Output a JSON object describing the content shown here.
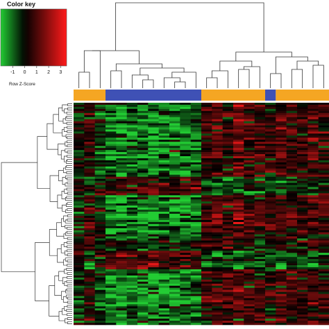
{
  "color_key": {
    "title": "Color key",
    "axis_label": "Row Z-Score",
    "ticks": [
      "-1",
      "0",
      "1",
      "2",
      "3"
    ],
    "tick_values": [
      -1,
      0,
      1,
      2,
      3
    ],
    "range": [
      -2,
      3.5
    ],
    "low_color": "#22cc33",
    "mid_color": "#000000",
    "high_color": "#ff1a1a"
  },
  "chart_data": {
    "type": "heatmap",
    "title": "",
    "xlabel": "",
    "ylabel": "",
    "column_count": 24,
    "row_count": 108,
    "value_range": [
      -2,
      3.5
    ],
    "column_groups": [
      {
        "color": "#f5a623",
        "columns": 3
      },
      {
        "color": "#3f51b5",
        "columns": 9
      },
      {
        "color": "#f5a623",
        "columns": 6
      },
      {
        "color": "#3f51b5",
        "columns": 1
      },
      {
        "color": "#f5a623",
        "columns": 5
      }
    ],
    "column_pattern": [
      -0.3,
      0.8,
      -0.6,
      -1.3,
      -1.6,
      -1.2,
      -1.5,
      -1.7,
      -1.3,
      -1.5,
      -1.4,
      -1.1,
      0.9,
      1.2,
      1.0,
      1.5,
      0.8,
      1.1,
      0.6,
      1.2,
      0.9,
      0.7,
      1.1,
      0.8
    ],
    "row_block_signs": [
      1,
      1,
      1,
      0.8,
      -0.6,
      1,
      1,
      0.4,
      -0.8,
      1,
      1,
      0.6
    ],
    "dendrograms": {
      "rows": true,
      "columns": true
    }
  }
}
